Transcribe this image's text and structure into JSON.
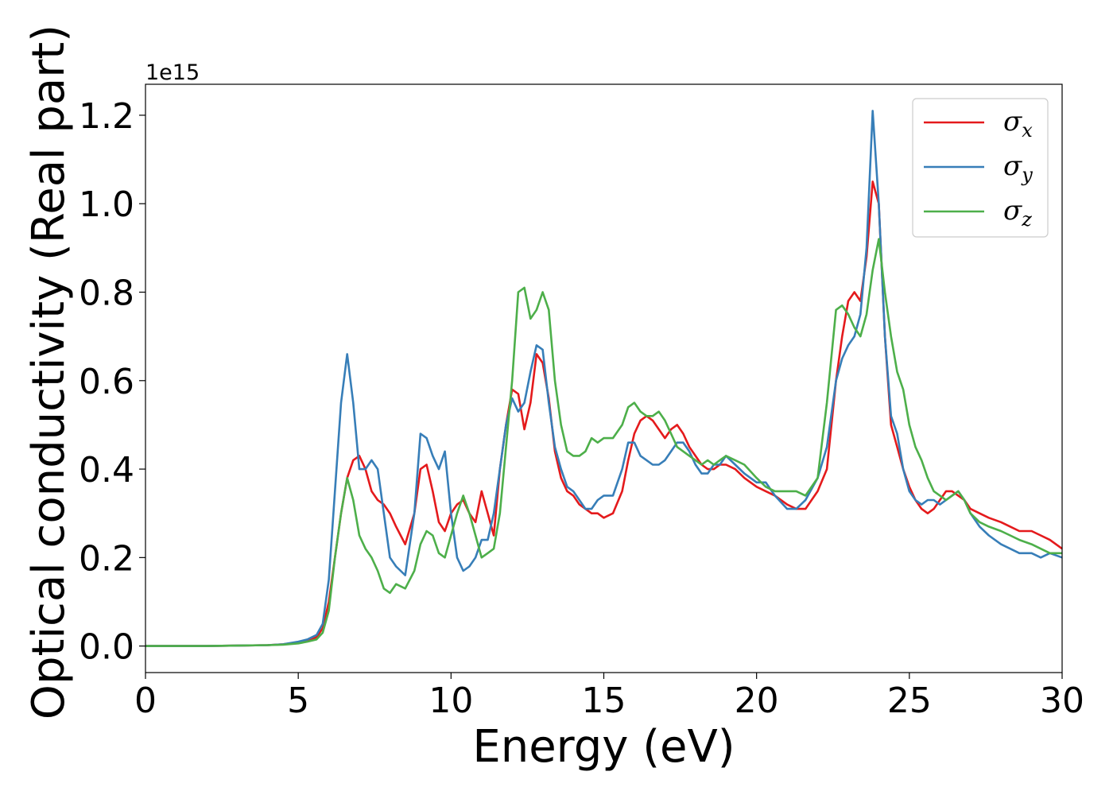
{
  "chart_data": {
    "type": "line",
    "title": "",
    "xlabel": "Energy (eV)",
    "ylabel": "Optical conductivity (Real part)",
    "y_offset_text": "1e15",
    "xlim": [
      0,
      30
    ],
    "ylim": [
      -0.06,
      1.27
    ],
    "xticks": [
      0,
      5,
      10,
      15,
      20,
      25,
      30
    ],
    "yticks": [
      0.0,
      0.2,
      0.4,
      0.6,
      0.8,
      1.0,
      1.2
    ],
    "xtick_labels": [
      "0",
      "5",
      "10",
      "15",
      "20",
      "25",
      "30"
    ],
    "ytick_labels": [
      "0.0",
      "0.2",
      "0.4",
      "0.6",
      "0.8",
      "1.0",
      "1.2"
    ],
    "grid": false,
    "legend_position": "top-right",
    "series": [
      {
        "name": "σx",
        "legend_symbol": "σ",
        "legend_subscript": "x",
        "color": "#e41a1c",
        "x": [
          0,
          1,
          2,
          3,
          4,
          4.5,
          5,
          5.3,
          5.6,
          5.8,
          6.0,
          6.2,
          6.4,
          6.6,
          6.8,
          7.0,
          7.2,
          7.4,
          7.6,
          7.8,
          8.0,
          8.2,
          8.5,
          8.8,
          9.0,
          9.2,
          9.4,
          9.6,
          9.8,
          10.0,
          10.2,
          10.4,
          10.6,
          10.8,
          11.0,
          11.2,
          11.4,
          11.6,
          11.8,
          12.0,
          12.2,
          12.4,
          12.6,
          12.8,
          13.0,
          13.2,
          13.4,
          13.6,
          13.8,
          14.0,
          14.2,
          14.4,
          14.6,
          14.8,
          15.0,
          15.3,
          15.6,
          15.8,
          16.0,
          16.2,
          16.4,
          16.6,
          16.8,
          17.0,
          17.2,
          17.4,
          17.6,
          17.8,
          18.0,
          18.2,
          18.4,
          18.6,
          18.8,
          19.0,
          19.3,
          19.6,
          20.0,
          20.3,
          20.6,
          21.0,
          21.3,
          21.6,
          22.0,
          22.3,
          22.6,
          22.8,
          23.0,
          23.2,
          23.4,
          23.6,
          23.8,
          24.0,
          24.2,
          24.4,
          24.6,
          24.8,
          25.0,
          25.2,
          25.4,
          25.6,
          25.8,
          26.0,
          26.2,
          26.4,
          26.6,
          26.8,
          27.0,
          27.3,
          27.6,
          28.0,
          28.3,
          28.6,
          29.0,
          29.3,
          29.6,
          30.0
        ],
        "y": [
          0,
          0,
          0,
          0.001,
          0.002,
          0.004,
          0.008,
          0.012,
          0.02,
          0.04,
          0.1,
          0.2,
          0.3,
          0.38,
          0.42,
          0.43,
          0.4,
          0.35,
          0.33,
          0.32,
          0.3,
          0.27,
          0.23,
          0.3,
          0.4,
          0.41,
          0.35,
          0.28,
          0.26,
          0.3,
          0.32,
          0.33,
          0.3,
          0.28,
          0.35,
          0.3,
          0.25,
          0.4,
          0.5,
          0.58,
          0.57,
          0.49,
          0.55,
          0.66,
          0.64,
          0.56,
          0.44,
          0.38,
          0.35,
          0.34,
          0.32,
          0.31,
          0.3,
          0.3,
          0.29,
          0.3,
          0.35,
          0.42,
          0.48,
          0.51,
          0.52,
          0.51,
          0.49,
          0.47,
          0.49,
          0.5,
          0.48,
          0.45,
          0.43,
          0.41,
          0.4,
          0.4,
          0.41,
          0.41,
          0.4,
          0.38,
          0.36,
          0.35,
          0.34,
          0.32,
          0.31,
          0.31,
          0.35,
          0.4,
          0.6,
          0.7,
          0.78,
          0.8,
          0.78,
          0.88,
          1.05,
          1.0,
          0.7,
          0.5,
          0.45,
          0.4,
          0.36,
          0.33,
          0.31,
          0.3,
          0.31,
          0.33,
          0.35,
          0.35,
          0.34,
          0.33,
          0.31,
          0.3,
          0.29,
          0.28,
          0.27,
          0.26,
          0.26,
          0.25,
          0.24,
          0.22
        ]
      },
      {
        "name": "σy",
        "legend_symbol": "σ",
        "legend_subscript": "y",
        "color": "#377eb8",
        "x": [
          0,
          1,
          2,
          3,
          4,
          4.5,
          5,
          5.3,
          5.6,
          5.8,
          6.0,
          6.2,
          6.4,
          6.6,
          6.8,
          7.0,
          7.2,
          7.4,
          7.6,
          7.8,
          8.0,
          8.2,
          8.5,
          8.8,
          9.0,
          9.2,
          9.4,
          9.6,
          9.8,
          10.0,
          10.2,
          10.4,
          10.6,
          10.8,
          11.0,
          11.2,
          11.4,
          11.6,
          11.8,
          12.0,
          12.2,
          12.4,
          12.6,
          12.8,
          13.0,
          13.2,
          13.4,
          13.6,
          13.8,
          14.0,
          14.2,
          14.4,
          14.6,
          14.8,
          15.0,
          15.3,
          15.6,
          15.8,
          16.0,
          16.2,
          16.4,
          16.6,
          16.8,
          17.0,
          17.2,
          17.4,
          17.6,
          17.8,
          18.0,
          18.2,
          18.4,
          18.6,
          18.8,
          19.0,
          19.3,
          19.6,
          20.0,
          20.3,
          20.6,
          21.0,
          21.3,
          21.6,
          22.0,
          22.3,
          22.6,
          22.8,
          23.0,
          23.2,
          23.4,
          23.6,
          23.8,
          24.0,
          24.2,
          24.4,
          24.6,
          24.8,
          25.0,
          25.2,
          25.4,
          25.6,
          25.8,
          26.0,
          26.2,
          26.4,
          26.6,
          26.8,
          27.0,
          27.3,
          27.6,
          28.0,
          28.3,
          28.6,
          29.0,
          29.3,
          29.6,
          30.0
        ],
        "y": [
          0,
          0,
          0,
          0.001,
          0.002,
          0.004,
          0.01,
          0.015,
          0.025,
          0.05,
          0.15,
          0.35,
          0.55,
          0.66,
          0.55,
          0.4,
          0.4,
          0.42,
          0.4,
          0.3,
          0.2,
          0.18,
          0.16,
          0.3,
          0.48,
          0.47,
          0.43,
          0.4,
          0.44,
          0.3,
          0.2,
          0.17,
          0.18,
          0.2,
          0.24,
          0.24,
          0.3,
          0.4,
          0.5,
          0.56,
          0.53,
          0.55,
          0.62,
          0.68,
          0.67,
          0.55,
          0.45,
          0.4,
          0.36,
          0.35,
          0.33,
          0.31,
          0.31,
          0.33,
          0.34,
          0.34,
          0.4,
          0.46,
          0.46,
          0.43,
          0.42,
          0.41,
          0.41,
          0.42,
          0.44,
          0.46,
          0.46,
          0.44,
          0.41,
          0.39,
          0.39,
          0.41,
          0.41,
          0.43,
          0.41,
          0.39,
          0.37,
          0.37,
          0.34,
          0.31,
          0.31,
          0.33,
          0.38,
          0.45,
          0.6,
          0.65,
          0.68,
          0.7,
          0.75,
          0.9,
          1.21,
          1.0,
          0.7,
          0.52,
          0.48,
          0.4,
          0.35,
          0.33,
          0.32,
          0.33,
          0.33,
          0.32,
          0.33,
          0.34,
          0.35,
          0.33,
          0.3,
          0.27,
          0.25,
          0.23,
          0.22,
          0.21,
          0.21,
          0.2,
          0.21,
          0.2
        ]
      },
      {
        "name": "σz",
        "legend_symbol": "σ",
        "legend_subscript": "z",
        "color": "#4daf4a",
        "x": [
          0,
          1,
          2,
          3,
          4,
          4.5,
          5,
          5.3,
          5.6,
          5.8,
          6.0,
          6.2,
          6.4,
          6.6,
          6.8,
          7.0,
          7.2,
          7.4,
          7.6,
          7.8,
          8.0,
          8.2,
          8.5,
          8.8,
          9.0,
          9.2,
          9.4,
          9.6,
          9.8,
          10.0,
          10.2,
          10.4,
          10.6,
          10.8,
          11.0,
          11.2,
          11.4,
          11.6,
          11.8,
          12.0,
          12.2,
          12.4,
          12.6,
          12.8,
          13.0,
          13.2,
          13.4,
          13.6,
          13.8,
          14.0,
          14.2,
          14.4,
          14.6,
          14.8,
          15.0,
          15.3,
          15.6,
          15.8,
          16.0,
          16.2,
          16.4,
          16.6,
          16.8,
          17.0,
          17.2,
          17.4,
          17.6,
          17.8,
          18.0,
          18.2,
          18.4,
          18.6,
          18.8,
          19.0,
          19.3,
          19.6,
          20.0,
          20.3,
          20.6,
          21.0,
          21.3,
          21.6,
          22.0,
          22.3,
          22.6,
          22.8,
          23.0,
          23.2,
          23.4,
          23.6,
          23.8,
          24.0,
          24.2,
          24.4,
          24.6,
          24.8,
          25.0,
          25.2,
          25.4,
          25.6,
          25.8,
          26.0,
          26.2,
          26.4,
          26.6,
          26.8,
          27.0,
          27.3,
          27.6,
          28.0,
          28.3,
          28.6,
          29.0,
          29.3,
          29.6,
          30.0
        ],
        "y": [
          0,
          0,
          0,
          0.001,
          0.002,
          0.003,
          0.006,
          0.01,
          0.015,
          0.03,
          0.08,
          0.2,
          0.3,
          0.38,
          0.33,
          0.25,
          0.22,
          0.2,
          0.17,
          0.13,
          0.12,
          0.14,
          0.13,
          0.17,
          0.23,
          0.26,
          0.25,
          0.21,
          0.2,
          0.25,
          0.3,
          0.34,
          0.3,
          0.25,
          0.2,
          0.21,
          0.22,
          0.3,
          0.45,
          0.6,
          0.8,
          0.81,
          0.74,
          0.76,
          0.8,
          0.76,
          0.6,
          0.5,
          0.44,
          0.43,
          0.43,
          0.44,
          0.47,
          0.46,
          0.47,
          0.47,
          0.5,
          0.54,
          0.55,
          0.53,
          0.52,
          0.52,
          0.53,
          0.51,
          0.48,
          0.45,
          0.44,
          0.43,
          0.42,
          0.41,
          0.42,
          0.41,
          0.42,
          0.43,
          0.42,
          0.41,
          0.38,
          0.36,
          0.35,
          0.35,
          0.35,
          0.34,
          0.38,
          0.55,
          0.76,
          0.77,
          0.75,
          0.72,
          0.7,
          0.75,
          0.85,
          0.92,
          0.8,
          0.7,
          0.62,
          0.58,
          0.5,
          0.45,
          0.42,
          0.38,
          0.35,
          0.34,
          0.33,
          0.34,
          0.35,
          0.33,
          0.3,
          0.28,
          0.27,
          0.26,
          0.25,
          0.24,
          0.23,
          0.22,
          0.21,
          0.21
        ]
      }
    ]
  }
}
